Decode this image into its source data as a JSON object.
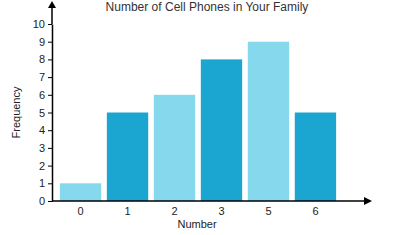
{
  "chart_data": {
    "type": "bar",
    "title": "Number of Cell Phones in Your Family",
    "x_label": "Number",
    "y_label": "Frequency",
    "categories": [
      "0",
      "1",
      "2",
      "3",
      "5",
      "6"
    ],
    "values": [
      1,
      5,
      6,
      8,
      9,
      5
    ],
    "colors": [
      "#86d9ec",
      "#1ba6d2",
      "#86d9ec",
      "#1ba6d2",
      "#86d9ec",
      "#1ba6d2"
    ],
    "ylim": [
      0,
      10
    ],
    "yticks": [
      0,
      1,
      2,
      3,
      4,
      5,
      6,
      7,
      8,
      9,
      10
    ],
    "grid": false
  }
}
